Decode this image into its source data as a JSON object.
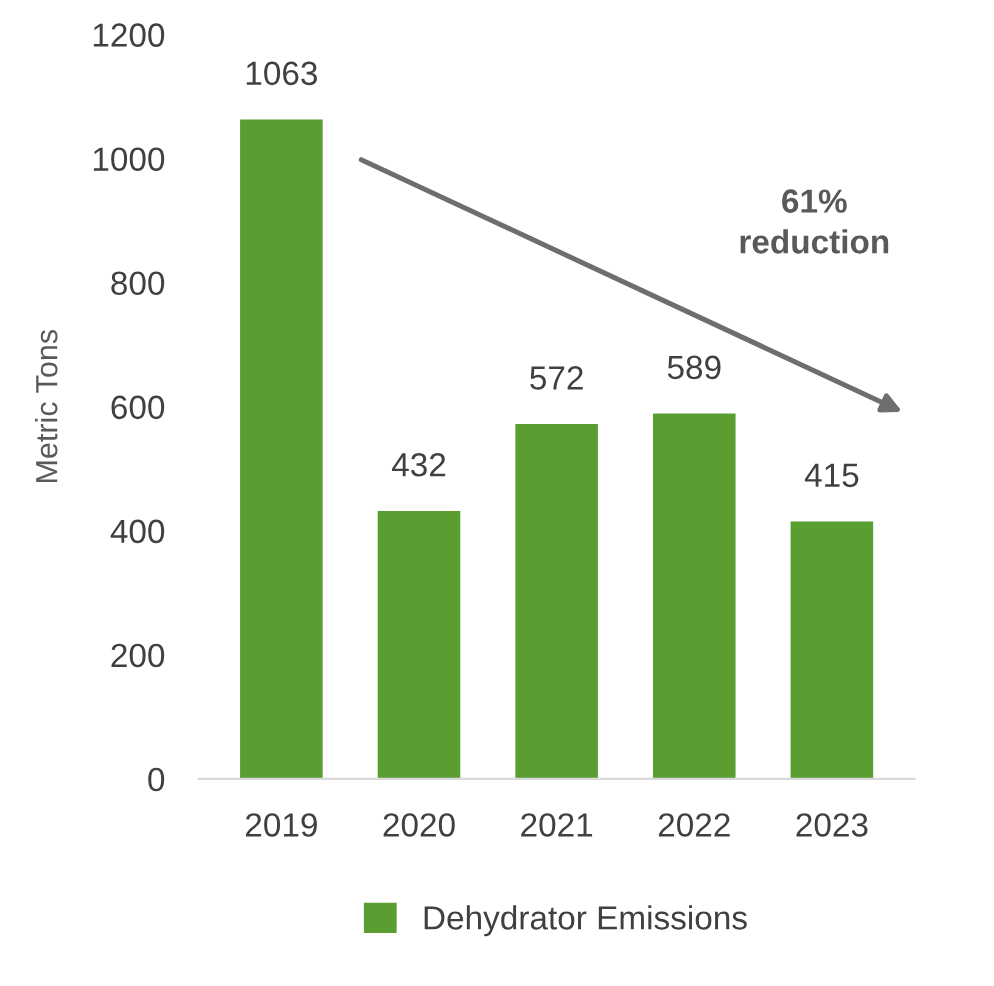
{
  "chart_data": {
    "type": "bar",
    "categories": [
      "2019",
      "2020",
      "2021",
      "2022",
      "2023"
    ],
    "series": [
      {
        "name": "Dehydrator Emissions",
        "color": "#5a9e32",
        "values": [
          1063,
          432,
          572,
          589,
          415
        ]
      }
    ],
    "ylabel": "Metric Tons",
    "ylim": [
      0,
      1200
    ],
    "yticks": [
      0,
      200,
      400,
      600,
      800,
      1000,
      1200
    ],
    "data_labels": true,
    "grid": false,
    "legend": "bottom",
    "annotations": [
      "61%\nreduction"
    ]
  }
}
